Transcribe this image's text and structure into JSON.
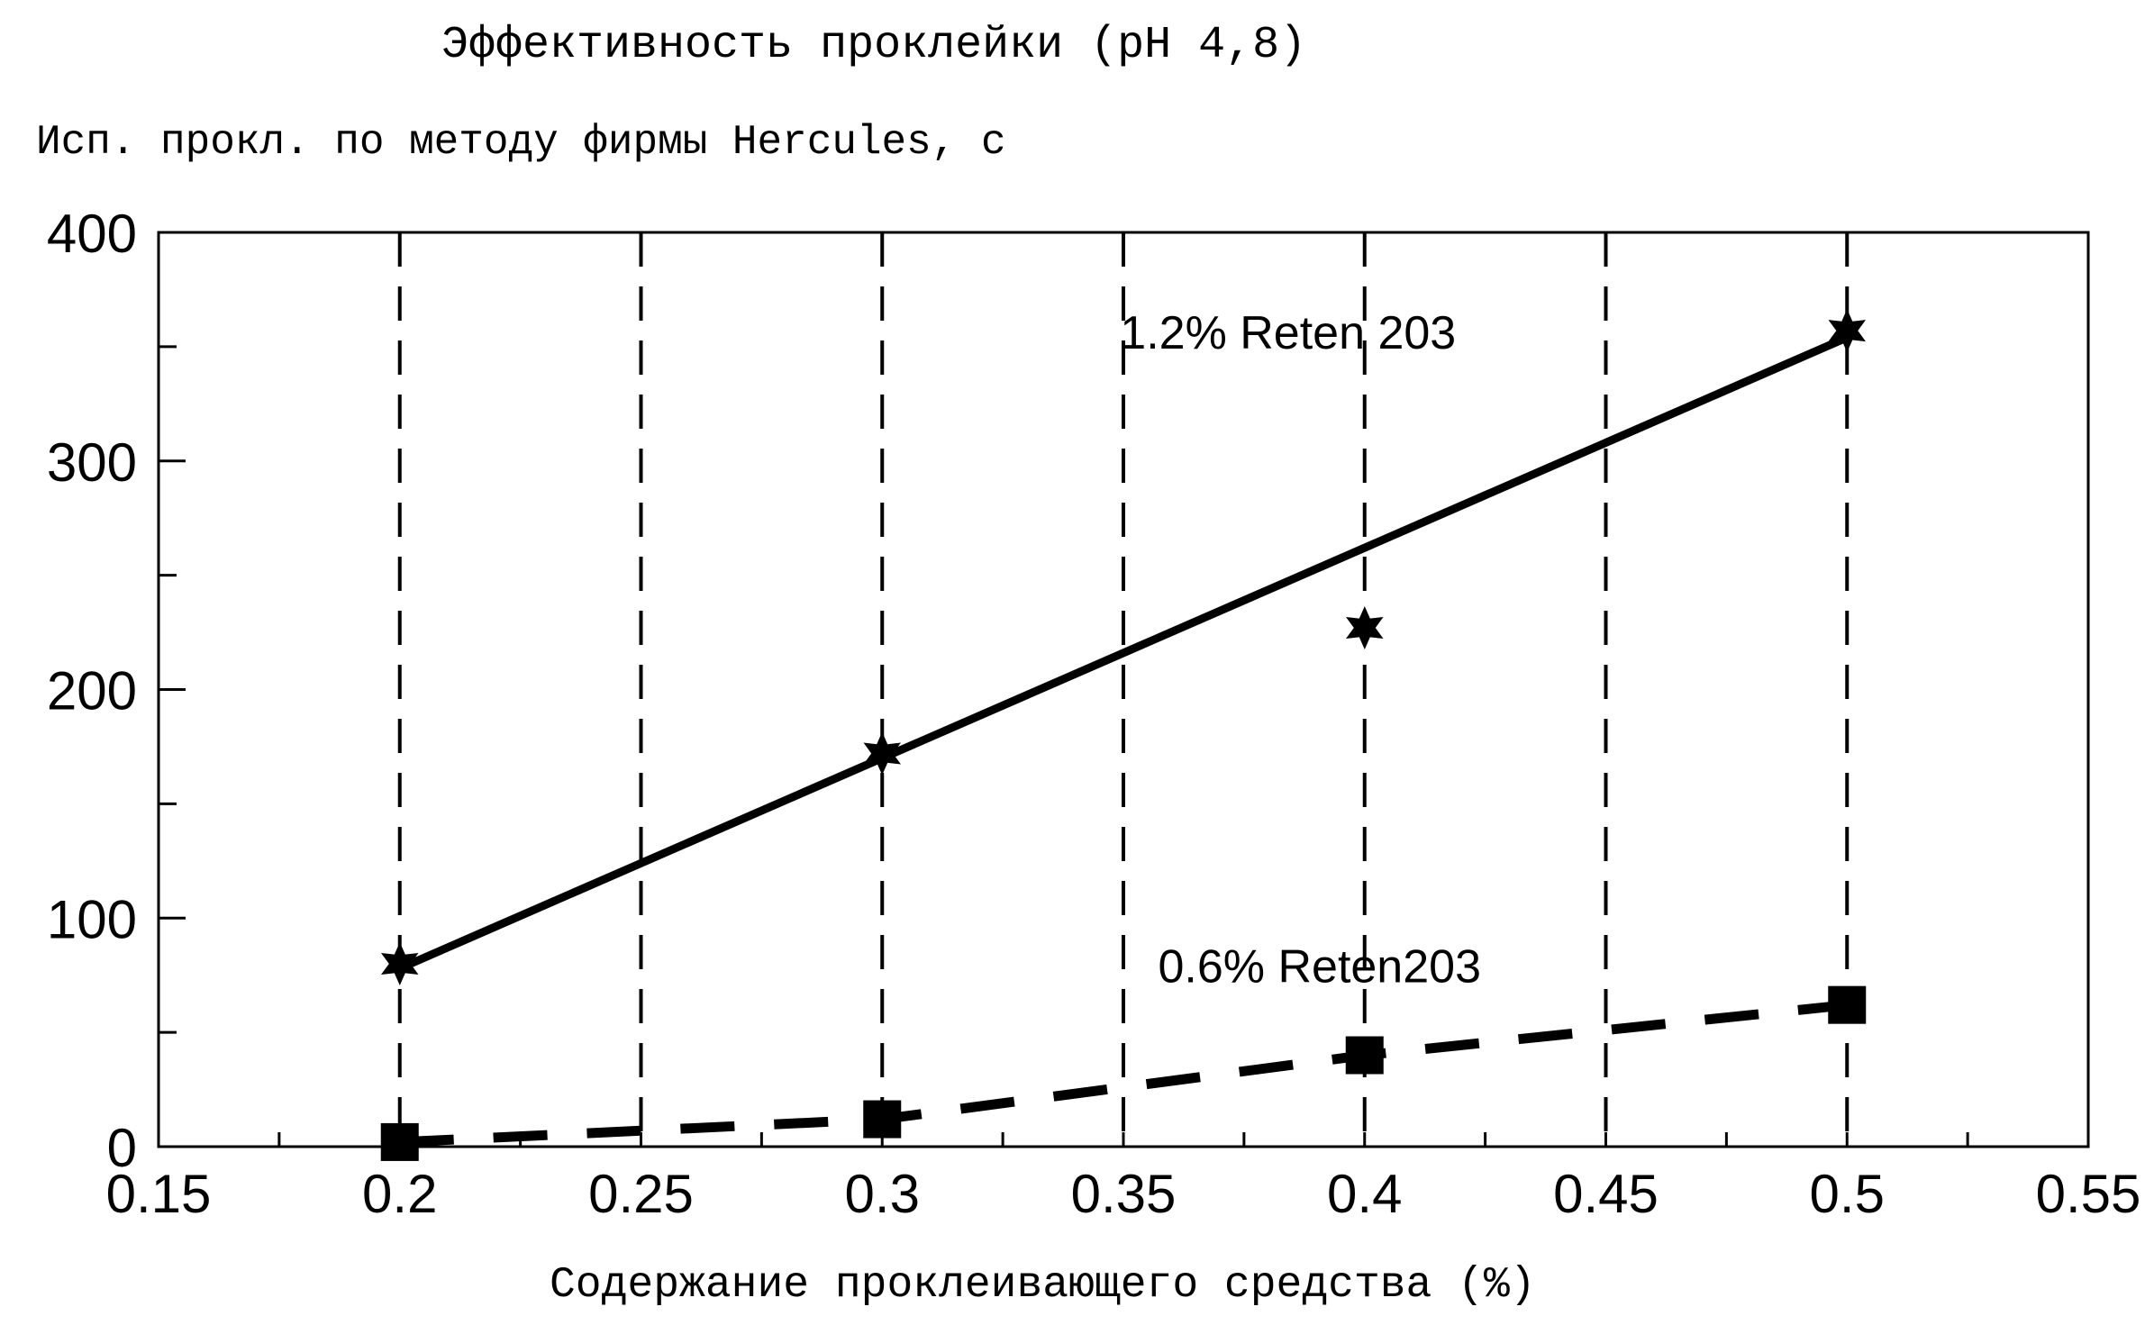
{
  "chart_data": {
    "type": "line",
    "title": "Эффективность проклейки (pH 4,8)",
    "ylabel": "Исп. прокл. по методу фирмы Hercules, с",
    "xlabel": "Содержание проклеивающего средства (%)",
    "xlim": [
      0.15,
      0.55
    ],
    "ylim": [
      0,
      400
    ],
    "x_ticks": [
      "0.15",
      "0.2",
      "0.25",
      "0.3",
      "0.35",
      "0.4",
      "0.45",
      "0.5",
      "0.55"
    ],
    "y_ticks": [
      "0",
      "100",
      "200",
      "300",
      "400"
    ],
    "grid": "vertical dashed lines at x ticks",
    "series": [
      {
        "name": "1.2% Reten 203",
        "marker": "star",
        "line_style": "solid",
        "points": [
          {
            "x": 0.2,
            "y": 80
          },
          {
            "x": 0.3,
            "y": 172
          },
          {
            "x": 0.4,
            "y": 227
          },
          {
            "x": 0.5,
            "y": 357
          }
        ],
        "fit_line": [
          {
            "x": 0.2,
            "y": 78
          },
          {
            "x": 0.5,
            "y": 354
          }
        ]
      },
      {
        "name": "0.6% Reten203",
        "marker": "square",
        "line_style": "dashed",
        "points": [
          {
            "x": 0.2,
            "y": 2
          },
          {
            "x": 0.3,
            "y": 12
          },
          {
            "x": 0.4,
            "y": 40
          },
          {
            "x": 0.5,
            "y": 62
          }
        ]
      }
    ]
  }
}
